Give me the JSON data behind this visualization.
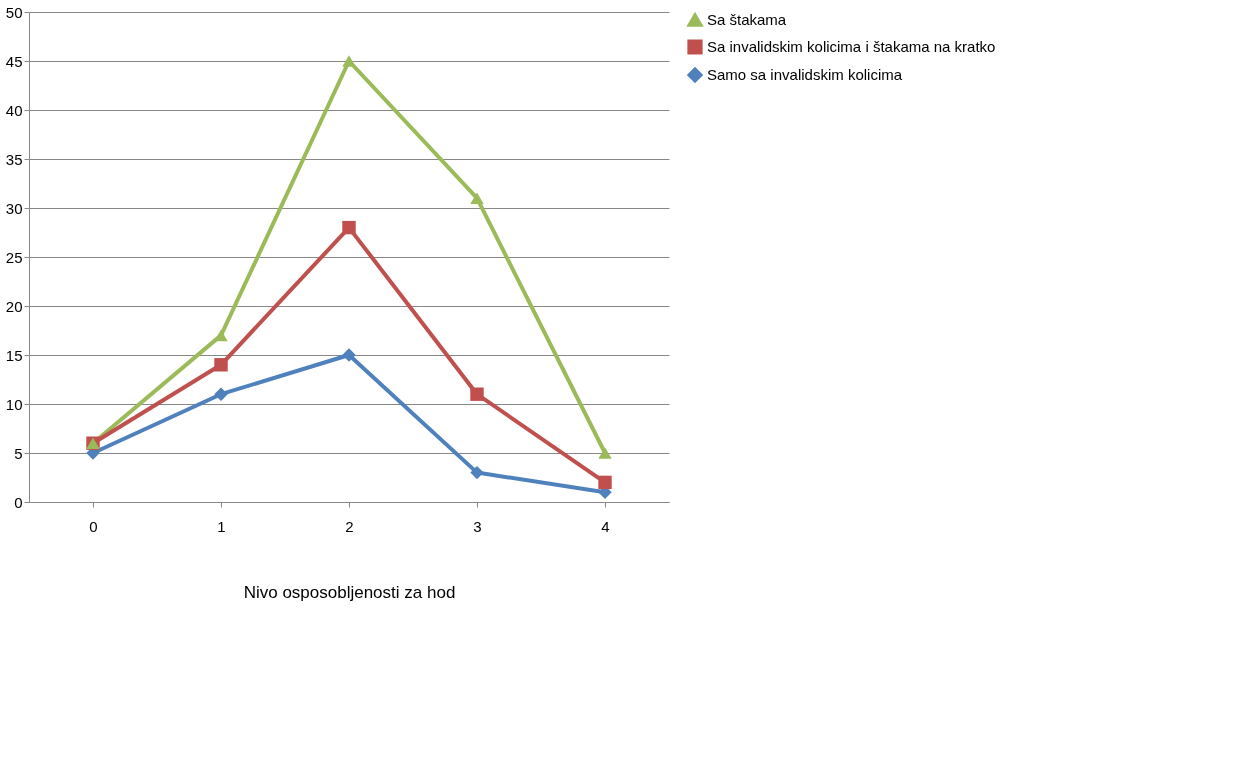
{
  "chart_data": {
    "type": "line",
    "xlabel": "Nivo osposobljenosti za hod",
    "categories": [
      "0",
      "1",
      "2",
      "3",
      "4"
    ],
    "series": [
      {
        "name": "Sa štakama",
        "color": "#9bbb59",
        "marker": "triangle",
        "values": [
          6,
          17,
          45,
          31,
          5
        ]
      },
      {
        "name": "Sa invalidskim kolicima i štakama na kratko",
        "color": "#c0504d",
        "marker": "square",
        "values": [
          6,
          14,
          28,
          11,
          2
        ]
      },
      {
        "name": "Samo sa invalidskim kolicima",
        "color": "#4f81bd",
        "marker": "diamond",
        "values": [
          5,
          11,
          15,
          3,
          1
        ]
      }
    ],
    "ylim": [
      0,
      50
    ],
    "yticks": [
      0,
      5,
      10,
      15,
      20,
      25,
      30,
      35,
      40,
      45,
      50
    ],
    "grid": "y",
    "legend": "right",
    "line_style": "solid"
  }
}
